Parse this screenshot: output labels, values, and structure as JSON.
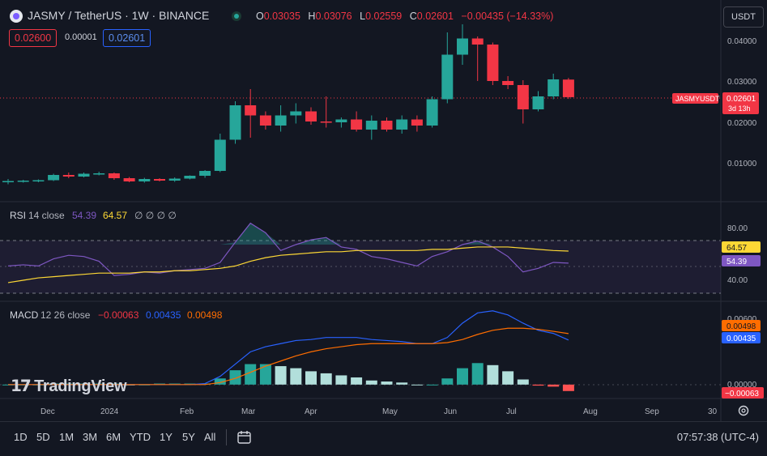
{
  "header": {
    "symbol_title": "JASMY / TetherUS · 1W · BINANCE",
    "ohlc": {
      "o_label": "O",
      "o": "0.03035",
      "h_label": "H",
      "h": "0.03076",
      "l_label": "L",
      "l": "0.02559",
      "c_label": "C",
      "c": "0.02601",
      "change": "−0.00435 (−14.33%)"
    },
    "sell_price": "0.02600",
    "spread": "0.00001",
    "buy_price": "0.02601",
    "currency_button": "USDT"
  },
  "price_axis": {
    "ticks": [
      "0.04000",
      "0.03000",
      "0.02000",
      "0.01000"
    ],
    "symbol_tag": "JASMYUSDT",
    "last_price": "0.02601",
    "countdown": "3d 13h"
  },
  "rsi": {
    "label": "RSI",
    "params": "14 close",
    "rsi_value": "54.39",
    "ma_value": "64.57",
    "extra": "∅ ∅ ∅ ∅",
    "ticks": [
      "80.00",
      "40.00"
    ],
    "badge_ma": "64.57",
    "badge_rsi": "54.39"
  },
  "macd": {
    "label": "MACD",
    "params": "12 26 close",
    "hist_value": "−0.00063",
    "macd_value": "0.00435",
    "signal_value": "0.00498",
    "ticks": [
      "0.00600",
      "0.00000"
    ],
    "badge_signal": "0.00498",
    "badge_macd": "0.00435",
    "badge_hist": "−0.00063"
  },
  "time_axis": [
    "Dec",
    "2024",
    "Feb",
    "Mar",
    "Apr",
    "May",
    "Jun",
    "Jul",
    "Aug",
    "Sep",
    "30"
  ],
  "logo_text": "TradingView",
  "toolbar": {
    "ranges": [
      "1D",
      "5D",
      "1M",
      "3M",
      "6M",
      "YTD",
      "1Y",
      "5Y",
      "All"
    ],
    "clock": "07:57:38 (UTC-4)"
  },
  "colors": {
    "up": "#26a69a",
    "down": "#f23645",
    "rsi_line": "#7e57c2",
    "rsi_ma": "#fdd835",
    "macd_line": "#2962ff",
    "signal_line": "#ff6d00",
    "hist_up": "#b2dfdb",
    "hist_up_strong": "#26a69a",
    "hist_down": "#ffcdd2",
    "hist_down_strong": "#ff5252"
  },
  "icons": {
    "calendar": "calendar-icon",
    "settings": "gear-icon"
  },
  "chart_data": {
    "type": "candlestick",
    "price_candles": [
      {
        "o": 0.005,
        "h": 0.0058,
        "l": 0.0045,
        "c": 0.0053
      },
      {
        "o": 0.0053,
        "h": 0.0056,
        "l": 0.0049,
        "c": 0.0054
      },
      {
        "o": 0.0054,
        "h": 0.0057,
        "l": 0.005,
        "c": 0.0055
      },
      {
        "o": 0.0055,
        "h": 0.0071,
        "l": 0.0053,
        "c": 0.0068
      },
      {
        "o": 0.0068,
        "h": 0.0074,
        "l": 0.006,
        "c": 0.0064
      },
      {
        "o": 0.0064,
        "h": 0.0074,
        "l": 0.0062,
        "c": 0.0071
      },
      {
        "o": 0.0071,
        "h": 0.0076,
        "l": 0.0067,
        "c": 0.0072
      },
      {
        "o": 0.0072,
        "h": 0.0074,
        "l": 0.0056,
        "c": 0.006
      },
      {
        "o": 0.006,
        "h": 0.0063,
        "l": 0.005,
        "c": 0.0052
      },
      {
        "o": 0.0052,
        "h": 0.0061,
        "l": 0.0049,
        "c": 0.0058
      },
      {
        "o": 0.0058,
        "h": 0.006,
        "l": 0.0052,
        "c": 0.0054
      },
      {
        "o": 0.0054,
        "h": 0.0062,
        "l": 0.0051,
        "c": 0.0059
      },
      {
        "o": 0.0059,
        "h": 0.0067,
        "l": 0.0057,
        "c": 0.0066
      },
      {
        "o": 0.0066,
        "h": 0.008,
        "l": 0.0061,
        "c": 0.0078
      },
      {
        "o": 0.0078,
        "h": 0.017,
        "l": 0.0075,
        "c": 0.0155
      },
      {
        "o": 0.0155,
        "h": 0.025,
        "l": 0.0145,
        "c": 0.024
      },
      {
        "o": 0.024,
        "h": 0.028,
        "l": 0.016,
        "c": 0.0215
      },
      {
        "o": 0.0215,
        "h": 0.0225,
        "l": 0.018,
        "c": 0.019
      },
      {
        "o": 0.019,
        "h": 0.024,
        "l": 0.0175,
        "c": 0.0215
      },
      {
        "o": 0.0215,
        "h": 0.0245,
        "l": 0.0195,
        "c": 0.0225
      },
      {
        "o": 0.0225,
        "h": 0.0235,
        "l": 0.0192,
        "c": 0.02
      },
      {
        "o": 0.02,
        "h": 0.0262,
        "l": 0.0185,
        "c": 0.0198
      },
      {
        "o": 0.0198,
        "h": 0.021,
        "l": 0.0185,
        "c": 0.0205
      },
      {
        "o": 0.0205,
        "h": 0.0225,
        "l": 0.0175,
        "c": 0.018
      },
      {
        "o": 0.018,
        "h": 0.0215,
        "l": 0.0155,
        "c": 0.0202
      },
      {
        "o": 0.0202,
        "h": 0.021,
        "l": 0.0175,
        "c": 0.018
      },
      {
        "o": 0.018,
        "h": 0.0215,
        "l": 0.017,
        "c": 0.0205
      },
      {
        "o": 0.0205,
        "h": 0.0215,
        "l": 0.0175,
        "c": 0.019
      },
      {
        "o": 0.019,
        "h": 0.0262,
        "l": 0.0185,
        "c": 0.0255
      },
      {
        "o": 0.0255,
        "h": 0.042,
        "l": 0.0245,
        "c": 0.0365
      },
      {
        "o": 0.0365,
        "h": 0.044,
        "l": 0.034,
        "c": 0.0405
      },
      {
        "o": 0.0405,
        "h": 0.041,
        "l": 0.03,
        "c": 0.039
      },
      {
        "o": 0.039,
        "h": 0.0395,
        "l": 0.029,
        "c": 0.03
      },
      {
        "o": 0.03,
        "h": 0.0312,
        "l": 0.028,
        "c": 0.029
      },
      {
        "o": 0.029,
        "h": 0.0302,
        "l": 0.0195,
        "c": 0.023
      },
      {
        "o": 0.023,
        "h": 0.0275,
        "l": 0.0225,
        "c": 0.0262
      },
      {
        "o": 0.0262,
        "h": 0.0318,
        "l": 0.0255,
        "c": 0.0304
      },
      {
        "o": 0.03035,
        "h": 0.03076,
        "l": 0.02559,
        "c": 0.02601
      }
    ],
    "price_range": [
      0.0,
      0.048
    ],
    "rsi": [
      52,
      53,
      52,
      58,
      61,
      60,
      56,
      44,
      45,
      47,
      46,
      48,
      49,
      50,
      55,
      72,
      88,
      80,
      65,
      70,
      74,
      76,
      68,
      66,
      60,
      58,
      55,
      52,
      60,
      64,
      70,
      73,
      68,
      60,
      47,
      50,
      55,
      54.39
    ],
    "rsi_ma": [
      38,
      40,
      42,
      43,
      44,
      45,
      46,
      46,
      46,
      47,
      47,
      48,
      48,
      49,
      50,
      52,
      56,
      59,
      61,
      62,
      63,
      64,
      64,
      65,
      65,
      65,
      65,
      65,
      66,
      66,
      67,
      68,
      68,
      68,
      67,
      66,
      65,
      64.57
    ],
    "rsi_range": [
      25,
      100
    ],
    "macd": [
      0.0,
      0.0,
      0.0,
      0.0,
      0.0,
      0.0,
      0.0,
      0.0,
      0.0,
      0.0,
      0.0,
      0.0,
      0.0,
      0.0001,
      0.0008,
      0.002,
      0.0032,
      0.0037,
      0.004,
      0.0043,
      0.0044,
      0.0046,
      0.0046,
      0.0046,
      0.0044,
      0.0043,
      0.0042,
      0.004,
      0.004,
      0.0046,
      0.006,
      0.007,
      0.0072,
      0.0068,
      0.006,
      0.0053,
      0.005,
      0.00435
    ],
    "signal": [
      0.0,
      0.0,
      0.0,
      0.0,
      0.0,
      0.0,
      0.0,
      0.0,
      0.0,
      0.0,
      0.0,
      0.0,
      0.0,
      0.0,
      0.0002,
      0.0006,
      0.0012,
      0.0018,
      0.0023,
      0.0028,
      0.0032,
      0.0035,
      0.0037,
      0.0039,
      0.004,
      0.004,
      0.004,
      0.004,
      0.004,
      0.0041,
      0.0044,
      0.0049,
      0.0053,
      0.0055,
      0.0055,
      0.0054,
      0.0052,
      0.00498
    ],
    "histogram": [
      0.0,
      0.0,
      0.0,
      0.0001,
      0.0001,
      0.0001,
      0.0001,
      0.0001,
      0.0,
      0.0,
      0.0001,
      0.0001,
      0.0001,
      0.0001,
      0.0006,
      0.0014,
      0.002,
      0.002,
      0.0018,
      0.0016,
      0.0013,
      0.0011,
      0.0009,
      0.0007,
      0.0004,
      0.0003,
      0.0002,
      0.0,
      0.0,
      0.0006,
      0.0016,
      0.0021,
      0.0019,
      0.0013,
      0.0005,
      -0.0001,
      -0.0002,
      -0.00063
    ],
    "macd_range": [
      -0.0012,
      0.0075
    ]
  }
}
